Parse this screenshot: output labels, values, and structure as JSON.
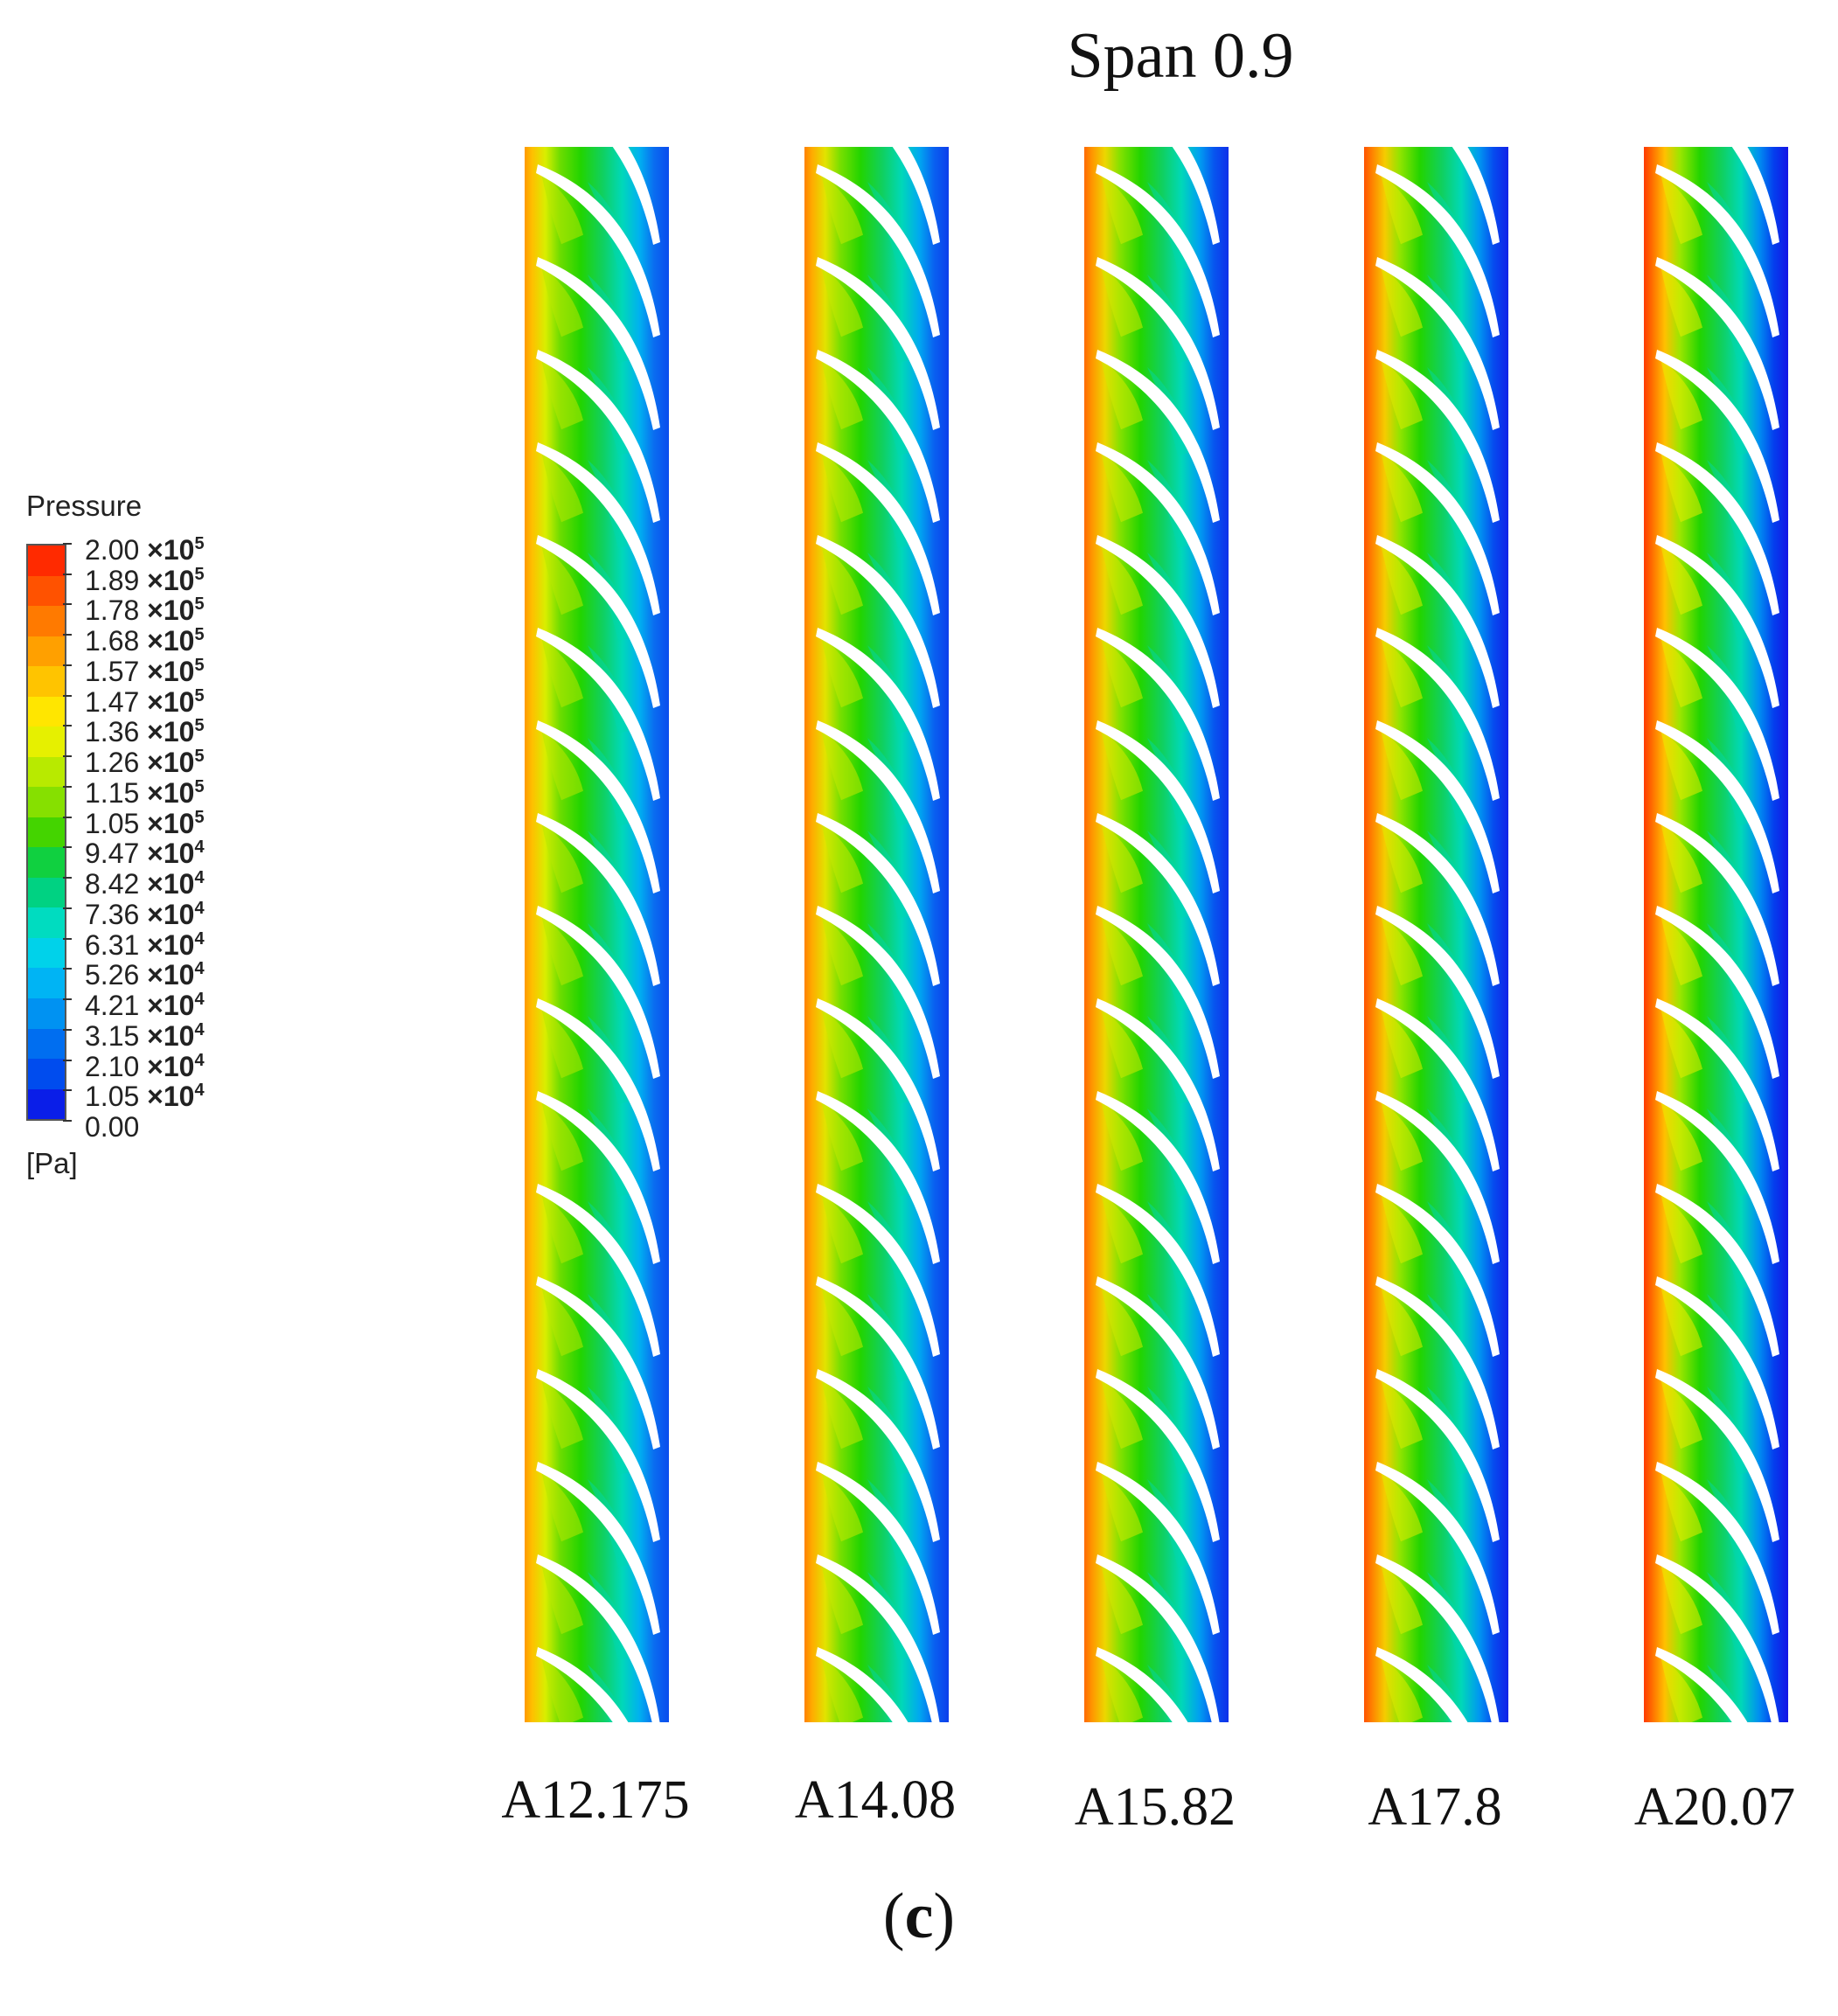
{
  "title": "Span 0.9",
  "panel_label": {
    "open": "(",
    "letter": "c",
    "close": ")"
  },
  "legend": {
    "title": "Pressure",
    "unit": "[Pa]",
    "ticks": [
      {
        "mantissa": "2.00",
        "times": "×10",
        "exp": "5"
      },
      {
        "mantissa": "1.89",
        "times": "×10",
        "exp": "5"
      },
      {
        "mantissa": "1.78",
        "times": "×10",
        "exp": "5"
      },
      {
        "mantissa": "1.68",
        "times": "×10",
        "exp": "5"
      },
      {
        "mantissa": "1.57",
        "times": "×10",
        "exp": "5"
      },
      {
        "mantissa": "1.47",
        "times": "×10",
        "exp": "5"
      },
      {
        "mantissa": "1.36",
        "times": "×10",
        "exp": "5"
      },
      {
        "mantissa": "1.26",
        "times": "×10",
        "exp": "5"
      },
      {
        "mantissa": "1.15",
        "times": "×10",
        "exp": "5"
      },
      {
        "mantissa": "1.05",
        "times": "×10",
        "exp": "5"
      },
      {
        "mantissa": "9.47",
        "times": "×10",
        "exp": "4"
      },
      {
        "mantissa": "8.42",
        "times": "×10",
        "exp": "4"
      },
      {
        "mantissa": "7.36",
        "times": "×10",
        "exp": "4"
      },
      {
        "mantissa": "6.31",
        "times": "×10",
        "exp": "4"
      },
      {
        "mantissa": "5.26",
        "times": "×10",
        "exp": "4"
      },
      {
        "mantissa": "4.21",
        "times": "×10",
        "exp": "4"
      },
      {
        "mantissa": "3.15",
        "times": "×10",
        "exp": "4"
      },
      {
        "mantissa": "2.10",
        "times": "×10",
        "exp": "4"
      },
      {
        "mantissa": "1.05",
        "times": "×10",
        "exp": "4"
      },
      {
        "mantissa": "0.00",
        "times": "",
        "exp": ""
      }
    ],
    "colors_top_to_bottom": [
      "#ff2a00",
      "#ff5200",
      "#ff7a00",
      "#ffa000",
      "#ffc400",
      "#ffe600",
      "#e6f000",
      "#b8ea00",
      "#86e000",
      "#44d400",
      "#10d040",
      "#00d282",
      "#00dcc0",
      "#00d2ea",
      "#00b4f4",
      "#0092f2",
      "#006ef0",
      "#004cee",
      "#0a1ee8"
    ]
  },
  "cases": [
    {
      "label": "A12.175",
      "intensity": 0.0
    },
    {
      "label": "A14.08",
      "intensity": 0.25
    },
    {
      "label": "A15.82",
      "intensity": 0.5
    },
    {
      "label": "A17.8",
      "intensity": 0.75
    },
    {
      "label": "A20.07",
      "intensity": 1.0
    }
  ],
  "blade_count": 17
}
